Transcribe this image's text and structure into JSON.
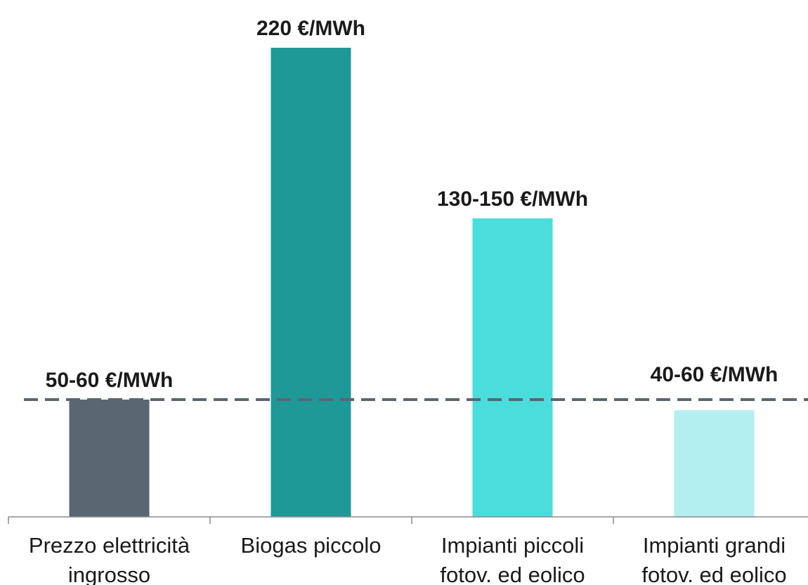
{
  "chart_data": {
    "type": "bar",
    "categories": [
      [
        "Prezzo elettricità",
        "ingrosso"
      ],
      [
        "Biogas piccolo"
      ],
      [
        "Impianti piccoli",
        "fotov. ed eolico"
      ],
      [
        "Impianti grandi",
        "fotov. ed eolico"
      ]
    ],
    "values": [
      55,
      220,
      140,
      50
    ],
    "data_labels": [
      "50-60 €/MWh",
      "220 €/MWh",
      "130-150 €/MWh",
      "40-60 €/MWh"
    ],
    "colors": [
      "#5a6672",
      "#1f9898",
      "#4bdcdc",
      "#b3eff0"
    ],
    "ylim": [
      0,
      220
    ],
    "reference_line": {
      "value": 55,
      "style": "dashed",
      "color": "#5a6672"
    },
    "grid": false,
    "legend": "none",
    "axis_color": "#8a8a8a"
  }
}
